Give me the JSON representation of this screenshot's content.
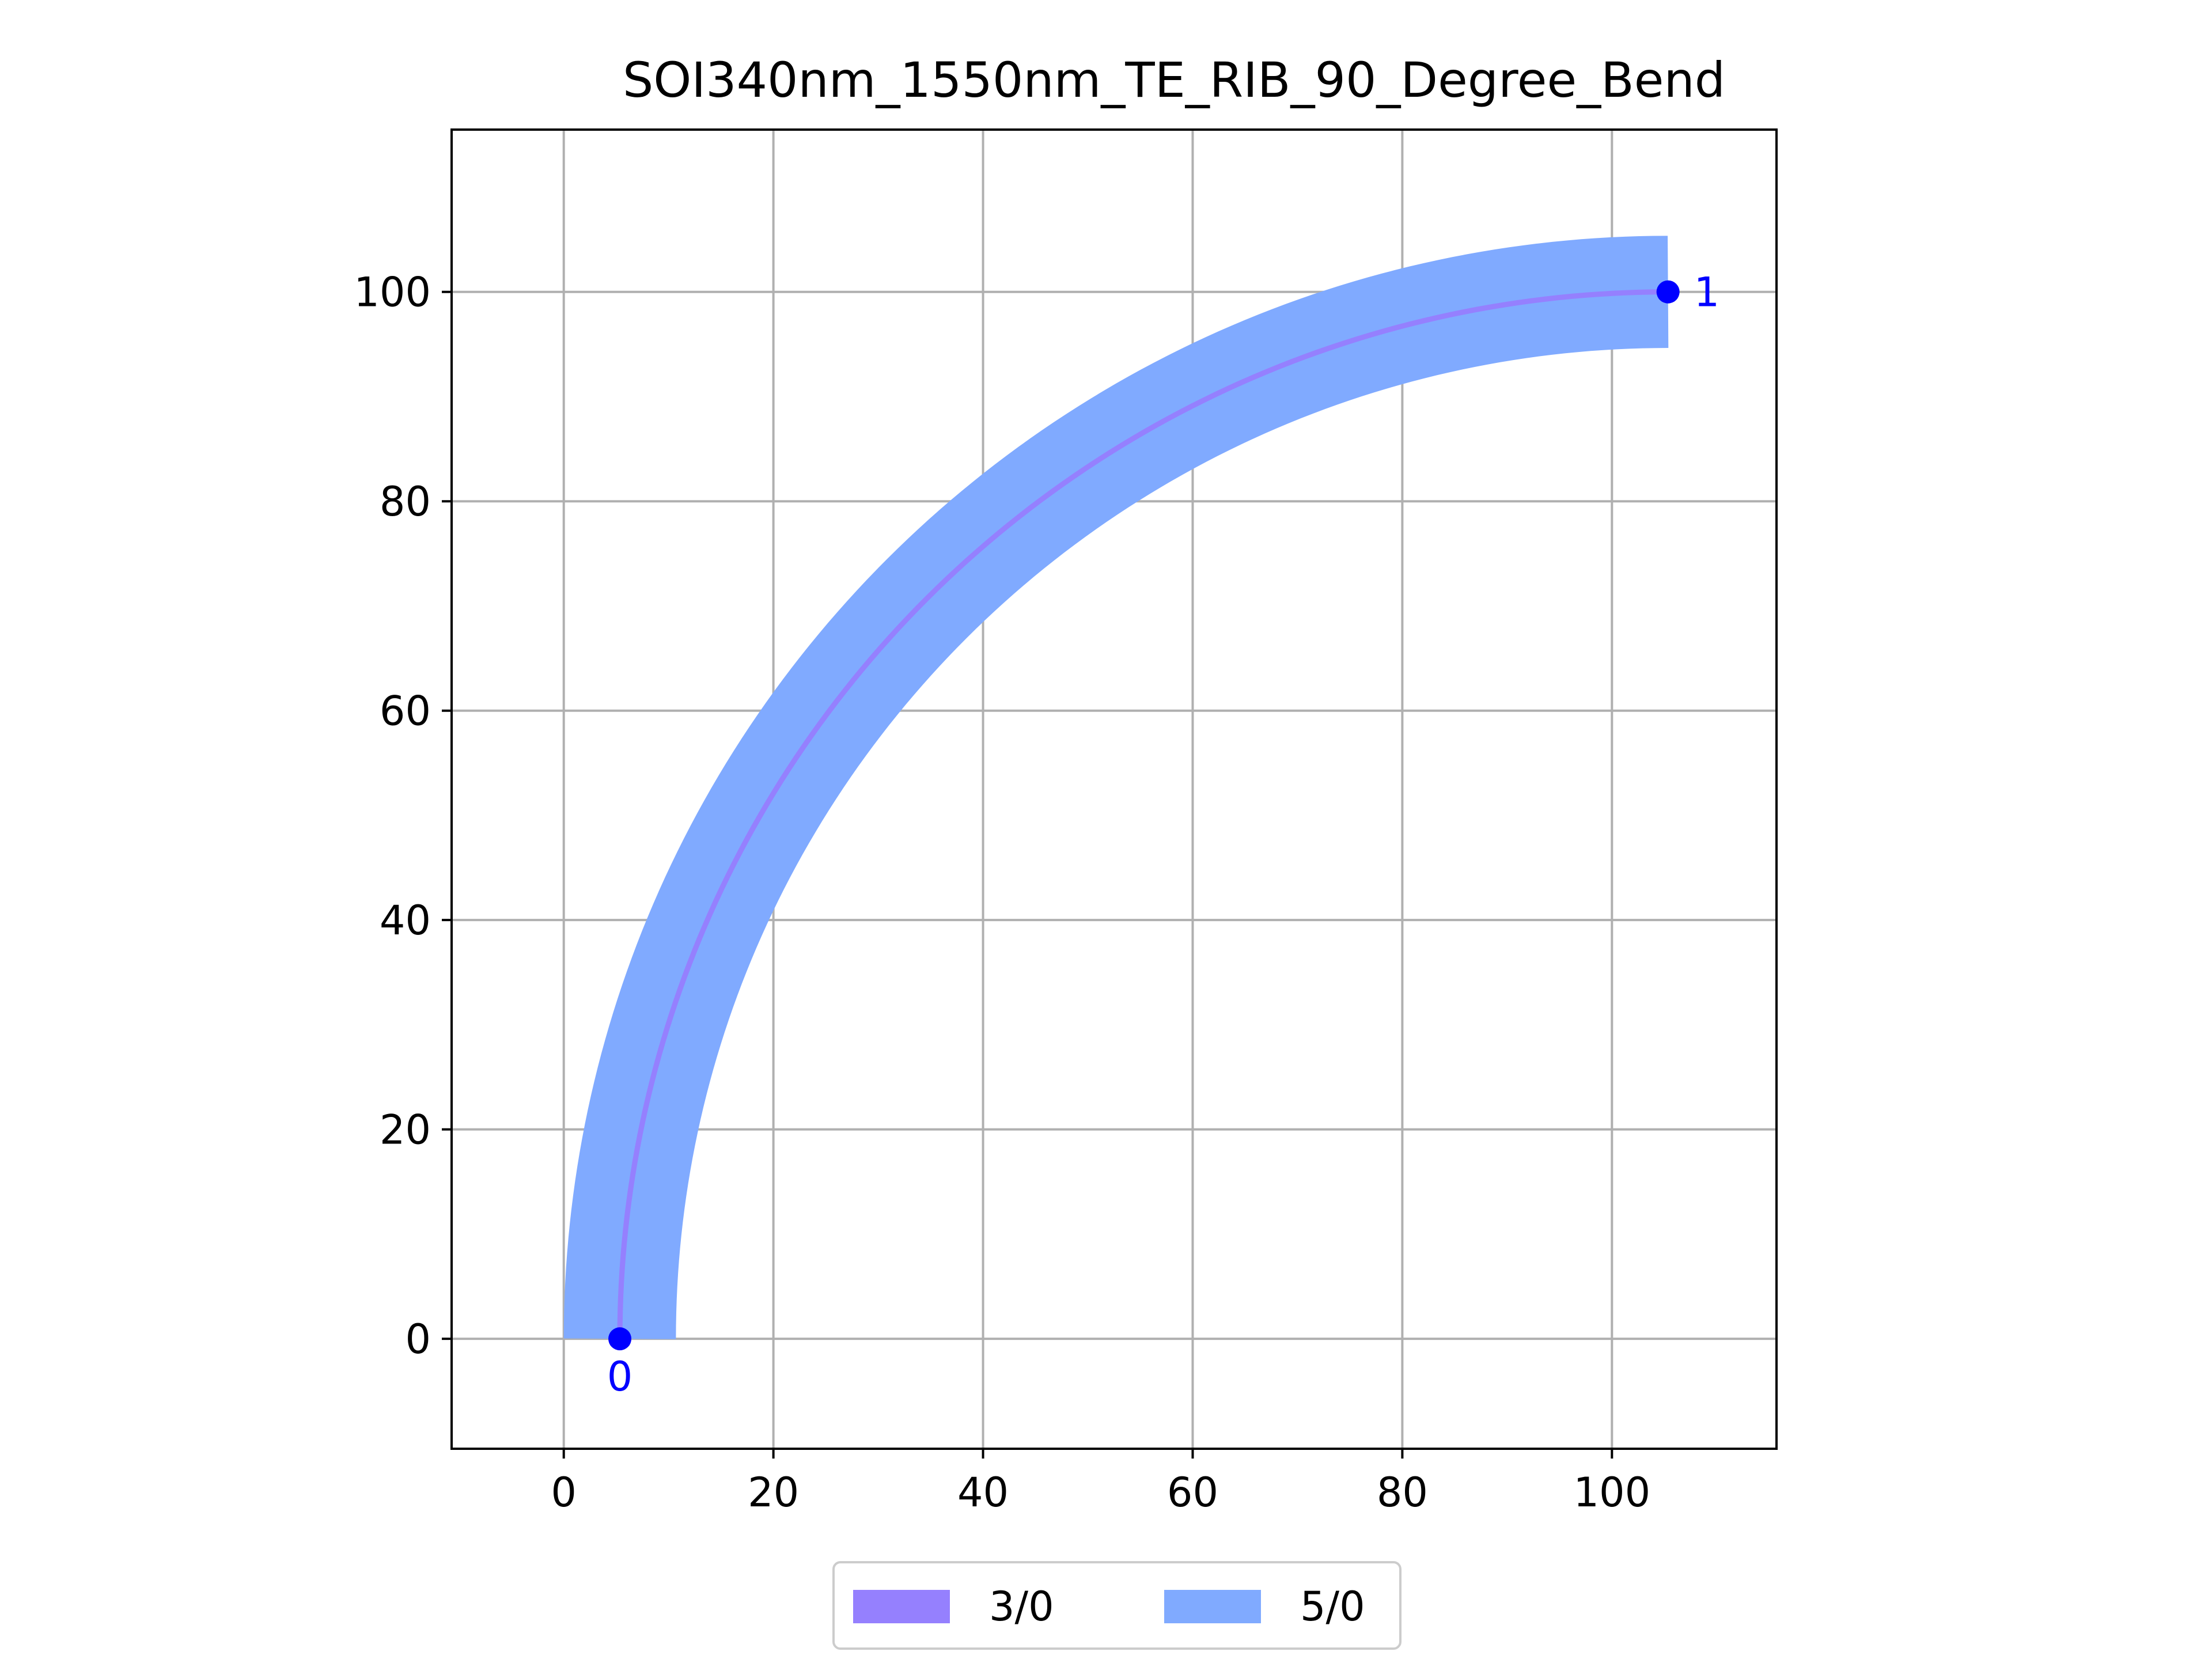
{
  "chart_data": {
    "type": "line",
    "title": "SOI340nm_1550nm_TE_RIB_90_Degree_Bend",
    "xlabel": "",
    "ylabel": "",
    "xlim": [
      -10.7,
      115.7
    ],
    "ylim": [
      -10.5,
      115.5
    ],
    "x_ticks": [
      0,
      20,
      40,
      60,
      80,
      100
    ],
    "y_ticks": [
      0,
      20,
      40,
      60,
      80,
      100
    ],
    "grid": true,
    "legend_position": "bottom-center",
    "bend": {
      "center": [
        105.35,
        0
      ],
      "radius": 100,
      "start_angle_deg": 180,
      "end_angle_deg": 90
    },
    "series": [
      {
        "name": "3/0",
        "color": "#9580fe",
        "width": 0.5
      },
      {
        "name": "5/0",
        "color": "#80aaff",
        "width": 10.7
      }
    ],
    "ports": [
      {
        "label": "0",
        "x": 5.35,
        "y": 0,
        "color": "#0000ff"
      },
      {
        "label": "1",
        "x": 105.35,
        "y": 100,
        "color": "#0000ff"
      }
    ]
  }
}
